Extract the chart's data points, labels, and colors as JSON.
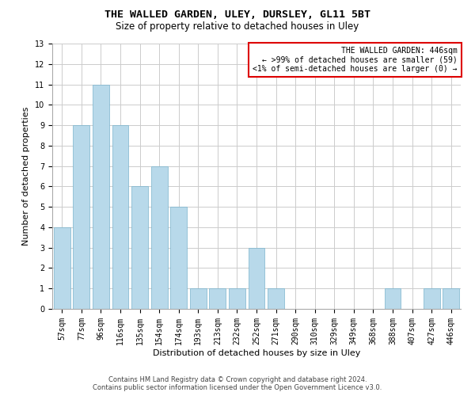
{
  "title": "THE WALLED GARDEN, ULEY, DURSLEY, GL11 5BT",
  "subtitle": "Size of property relative to detached houses in Uley",
  "xlabel": "Distribution of detached houses by size in Uley",
  "ylabel": "Number of detached properties",
  "categories": [
    "57sqm",
    "77sqm",
    "96sqm",
    "116sqm",
    "135sqm",
    "154sqm",
    "174sqm",
    "193sqm",
    "213sqm",
    "232sqm",
    "252sqm",
    "271sqm",
    "290sqm",
    "310sqm",
    "329sqm",
    "349sqm",
    "368sqm",
    "388sqm",
    "407sqm",
    "427sqm",
    "446sqm"
  ],
  "values": [
    4,
    9,
    11,
    9,
    6,
    7,
    5,
    1,
    1,
    1,
    3,
    1,
    0,
    0,
    0,
    0,
    0,
    1,
    0,
    1,
    1
  ],
  "bar_color": "#b8d9ea",
  "bar_edgecolor": "#7ab3cc",
  "ylim": [
    0,
    13
  ],
  "yticks": [
    0,
    1,
    2,
    3,
    4,
    5,
    6,
    7,
    8,
    9,
    10,
    11,
    12,
    13
  ],
  "annotation_text": "THE WALLED GARDEN: 446sqm\n← >99% of detached houses are smaller (59)\n<1% of semi-detached houses are larger (0) →",
  "annotation_box_edgecolor": "#dd0000",
  "footer1": "Contains HM Land Registry data © Crown copyright and database right 2024.",
  "footer2": "Contains public sector information licensed under the Open Government Licence v3.0.",
  "grid_color": "#cccccc",
  "background_color": "#ffffff",
  "title_fontsize": 9.5,
  "subtitle_fontsize": 8.5,
  "ylabel_fontsize": 8,
  "xlabel_fontsize": 8,
  "tick_fontsize": 7,
  "annot_fontsize": 7,
  "footer_fontsize": 6
}
